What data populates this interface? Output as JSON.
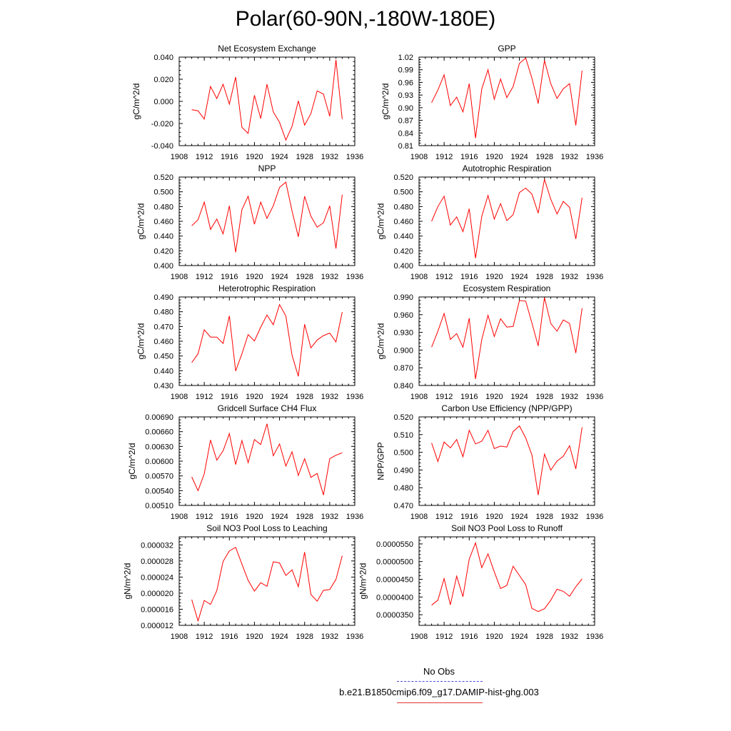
{
  "title": "Polar(60-90N,-180W-180E)",
  "legend": [
    {
      "label": "No Obs",
      "color": "#4a4ad8",
      "dashed": true
    },
    {
      "label": "b.e21.B1850cmip6.f09_g17.DAMIP-hist-ghg.003",
      "color": "#e0352e",
      "dashed": false
    }
  ],
  "chart_data": [
    {
      "type": "line",
      "title": "Net Ecosystem Exchange",
      "ylabel": "gC/m^2/d",
      "xlim": [
        1908,
        1936
      ],
      "x_ticks": [
        "1908",
        "1912",
        "1916",
        "1920",
        "1924",
        "1928",
        "1932",
        "1936"
      ],
      "ylim": [
        -0.04,
        0.04
      ],
      "y_ticks": [
        "-0.040",
        "-0.020",
        "0.000",
        "0.020",
        "0.040"
      ],
      "series": [
        {
          "color": "#ff0000",
          "x": [
            1910,
            1911,
            1912,
            1913,
            1914,
            1915,
            1916,
            1917,
            1918,
            1919,
            1920,
            1921,
            1922,
            1923,
            1924,
            1925,
            1926,
            1927,
            1928,
            1929,
            1930,
            1931,
            1932,
            1933,
            1934
          ],
          "values": [
            -0.0075,
            -0.0085,
            -0.016,
            0.0135,
            0.0025,
            0.0155,
            -0.0025,
            0.022,
            -0.0235,
            -0.029,
            0.0055,
            -0.0155,
            0.0155,
            -0.0095,
            -0.019,
            -0.035,
            -0.0225,
            0.0005,
            -0.0215,
            -0.011,
            0.0095,
            0.0065,
            -0.0135,
            0.0375,
            -0.016
          ]
        }
      ]
    },
    {
      "type": "line",
      "title": "GPP",
      "ylabel": "gC/m^2/d",
      "xlim": [
        1908,
        1936
      ],
      "x_ticks": [
        "1908",
        "1912",
        "1916",
        "1920",
        "1924",
        "1928",
        "1932",
        "1936"
      ],
      "ylim": [
        0.81,
        1.02
      ],
      "y_ticks": [
        "0.81",
        "0.84",
        "0.87",
        "0.90",
        "0.93",
        "0.96",
        "0.99",
        "1.02"
      ],
      "series": [
        {
          "color": "#ff0000",
          "x": [
            1910,
            1911,
            1912,
            1913,
            1914,
            1915,
            1916,
            1917,
            1918,
            1919,
            1920,
            1921,
            1922,
            1923,
            1924,
            1925,
            1926,
            1927,
            1928,
            1929,
            1930,
            1931,
            1932,
            1933,
            1934
          ],
          "values": [
            0.912,
            0.942,
            0.978,
            0.905,
            0.925,
            0.89,
            0.957,
            0.828,
            0.945,
            0.99,
            0.92,
            0.968,
            0.924,
            0.95,
            1.005,
            1.018,
            0.97,
            0.91,
            1.012,
            0.957,
            0.922,
            0.945,
            0.957,
            0.858,
            0.988
          ]
        }
      ]
    },
    {
      "type": "line",
      "title": "NPP",
      "ylabel": "gC/m^2/d",
      "xlim": [
        1908,
        1936
      ],
      "x_ticks": [
        "1908",
        "1912",
        "1916",
        "1920",
        "1924",
        "1928",
        "1932",
        "1936"
      ],
      "ylim": [
        0.4,
        0.52
      ],
      "y_ticks": [
        "0.400",
        "0.420",
        "0.440",
        "0.460",
        "0.480",
        "0.500",
        "0.520"
      ],
      "series": [
        {
          "color": "#ff0000",
          "x": [
            1910,
            1911,
            1912,
            1913,
            1914,
            1915,
            1916,
            1917,
            1918,
            1919,
            1920,
            1921,
            1922,
            1923,
            1924,
            1925,
            1926,
            1927,
            1928,
            1929,
            1930,
            1931,
            1932,
            1933,
            1934
          ],
          "values": [
            0.454,
            0.462,
            0.486,
            0.449,
            0.463,
            0.443,
            0.481,
            0.418,
            0.476,
            0.494,
            0.456,
            0.486,
            0.464,
            0.481,
            0.506,
            0.513,
            0.474,
            0.439,
            0.494,
            0.467,
            0.452,
            0.458,
            0.481,
            0.423,
            0.496
          ]
        }
      ]
    },
    {
      "type": "line",
      "title": "Autotrophic Respiration",
      "ylabel": "gC/m^2/d",
      "xlim": [
        1908,
        1936
      ],
      "x_ticks": [
        "1908",
        "1912",
        "1916",
        "1920",
        "1924",
        "1928",
        "1932",
        "1936"
      ],
      "ylim": [
        0.4,
        0.52
      ],
      "y_ticks": [
        "0.400",
        "0.420",
        "0.440",
        "0.460",
        "0.480",
        "0.500",
        "0.520"
      ],
      "series": [
        {
          "color": "#ff0000",
          "x": [
            1910,
            1911,
            1912,
            1913,
            1914,
            1915,
            1916,
            1917,
            1918,
            1919,
            1920,
            1921,
            1922,
            1923,
            1924,
            1925,
            1926,
            1927,
            1928,
            1929,
            1930,
            1931,
            1932,
            1933,
            1934
          ],
          "values": [
            0.46,
            0.48,
            0.494,
            0.455,
            0.466,
            0.446,
            0.477,
            0.41,
            0.467,
            0.495,
            0.463,
            0.484,
            0.461,
            0.469,
            0.499,
            0.505,
            0.497,
            0.471,
            0.517,
            0.49,
            0.47,
            0.487,
            0.479,
            0.436,
            0.492
          ]
        }
      ]
    },
    {
      "type": "line",
      "title": "Heterotrophic Respiration",
      "ylabel": "gC/m^2/d",
      "xlim": [
        1908,
        1936
      ],
      "x_ticks": [
        "1908",
        "1912",
        "1916",
        "1920",
        "1924",
        "1928",
        "1932",
        "1936"
      ],
      "ylim": [
        0.43,
        0.49
      ],
      "y_ticks": [
        "0.430",
        "0.440",
        "0.450",
        "0.460",
        "0.470",
        "0.480",
        "0.490"
      ],
      "series": [
        {
          "color": "#ff0000",
          "x": [
            1910,
            1911,
            1912,
            1913,
            1914,
            1915,
            1916,
            1917,
            1918,
            1919,
            1920,
            1921,
            1922,
            1923,
            1924,
            1925,
            1926,
            1927,
            1928,
            1929,
            1930,
            1931,
            1932,
            1933,
            1934
          ],
          "values": [
            0.4455,
            0.4515,
            0.4678,
            0.4628,
            0.4628,
            0.4585,
            0.4772,
            0.4398,
            0.4515,
            0.4645,
            0.4602,
            0.4695,
            0.4778,
            0.4712,
            0.4848,
            0.4772,
            0.4505,
            0.4362,
            0.4715,
            0.4555,
            0.4608,
            0.4638,
            0.4655,
            0.4595,
            0.4798
          ]
        }
      ]
    },
    {
      "type": "line",
      "title": "Ecosystem Respiration",
      "ylabel": "gC/m^2/d",
      "xlim": [
        1908,
        1936
      ],
      "x_ticks": [
        "1908",
        "1912",
        "1916",
        "1920",
        "1924",
        "1928",
        "1932",
        "1936"
      ],
      "ylim": [
        0.84,
        0.99
      ],
      "y_ticks": [
        "0.840",
        "0.870",
        "0.900",
        "0.930",
        "0.960",
        "0.990"
      ],
      "series": [
        {
          "color": "#ff0000",
          "x": [
            1910,
            1911,
            1912,
            1913,
            1914,
            1915,
            1916,
            1917,
            1918,
            1919,
            1920,
            1921,
            1922,
            1923,
            1924,
            1925,
            1926,
            1927,
            1928,
            1929,
            1930,
            1931,
            1932,
            1933,
            1934
          ],
          "values": [
            0.905,
            0.932,
            0.962,
            0.918,
            0.928,
            0.905,
            0.954,
            0.851,
            0.918,
            0.959,
            0.923,
            0.953,
            0.939,
            0.94,
            0.984,
            0.983,
            0.946,
            0.907,
            0.989,
            0.945,
            0.932,
            0.951,
            0.945,
            0.895,
            0.971
          ]
        }
      ]
    },
    {
      "type": "line",
      "title": "Gridcell Surface CH4 Flux",
      "ylabel": "gC/m^2/d",
      "xlim": [
        1908,
        1936
      ],
      "x_ticks": [
        "1908",
        "1912",
        "1916",
        "1920",
        "1924",
        "1928",
        "1932",
        "1936"
      ],
      "ylim": [
        0.0051,
        0.0069
      ],
      "y_ticks": [
        "0.00510",
        "0.00540",
        "0.00570",
        "0.00600",
        "0.00630",
        "0.00660",
        "0.00690"
      ],
      "series": [
        {
          "color": "#ff0000",
          "x": [
            1910,
            1911,
            1912,
            1913,
            1914,
            1915,
            1916,
            1917,
            1918,
            1919,
            1920,
            1921,
            1922,
            1923,
            1924,
            1925,
            1926,
            1927,
            1928,
            1929,
            1930,
            1931,
            1932,
            1933,
            1934
          ],
          "values": [
            0.00568,
            0.0054,
            0.00574,
            0.00643,
            0.00602,
            0.00621,
            0.00656,
            0.00593,
            0.00642,
            0.00597,
            0.00644,
            0.00634,
            0.00676,
            0.00611,
            0.00635,
            0.0059,
            0.00619,
            0.00571,
            0.00605,
            0.00567,
            0.00575,
            0.00531,
            0.00605,
            0.00612,
            0.00617
          ]
        }
      ]
    },
    {
      "type": "line",
      "title": "Carbon Use Efficiency (NPP/GPP)",
      "ylabel": "NPP/GPP",
      "xlim": [
        1908,
        1936
      ],
      "x_ticks": [
        "1908",
        "1912",
        "1916",
        "1920",
        "1924",
        "1928",
        "1932",
        "1936"
      ],
      "ylim": [
        0.47,
        0.52
      ],
      "y_ticks": [
        "0.470",
        "0.480",
        "0.490",
        "0.500",
        "0.510",
        "0.520"
      ],
      "series": [
        {
          "color": "#ff0000",
          "x": [
            1910,
            1911,
            1912,
            1913,
            1914,
            1915,
            1916,
            1917,
            1918,
            1919,
            1920,
            1921,
            1922,
            1923,
            1924,
            1925,
            1926,
            1927,
            1928,
            1929,
            1930,
            1931,
            1932,
            1933,
            1934
          ],
          "values": [
            0.5053,
            0.4948,
            0.5058,
            0.5025,
            0.5072,
            0.4975,
            0.5124,
            0.5047,
            0.5063,
            0.5124,
            0.5021,
            0.5035,
            0.503,
            0.5117,
            0.5149,
            0.5081,
            0.4985,
            0.4759,
            0.499,
            0.4899,
            0.4951,
            0.4978,
            0.5037,
            0.4906,
            0.5141
          ]
        }
      ]
    },
    {
      "type": "line",
      "title": "Soil NO3 Pool Loss to Leaching",
      "ylabel": "gN/m^2/d",
      "xlim": [
        1908,
        1936
      ],
      "x_ticks": [
        "1908",
        "1912",
        "1916",
        "1920",
        "1924",
        "1928",
        "1932",
        "1936"
      ],
      "ylim": [
        1.2e-05,
        3.4e-05
      ],
      "y_ticks": [
        "0.000012",
        "0.000016",
        "0.000020",
        "0.000024",
        "0.000028",
        "0.000032"
      ],
      "series": [
        {
          "color": "#ff0000",
          "x": [
            1910,
            1911,
            1912,
            1913,
            1914,
            1915,
            1916,
            1917,
            1918,
            1919,
            1920,
            1921,
            1922,
            1923,
            1924,
            1925,
            1926,
            1927,
            1928,
            1929,
            1930,
            1931,
            1932,
            1933,
            1934
          ],
          "values": [
            1.84e-05,
            1.31e-05,
            1.82e-05,
            1.72e-05,
            2.06e-05,
            2.79e-05,
            3.05e-05,
            3.14e-05,
            2.72e-05,
            2.32e-05,
            2.05e-05,
            2.26e-05,
            2.17e-05,
            2.78e-05,
            2.75e-05,
            2.44e-05,
            2.58e-05,
            2.16e-05,
            3.02e-05,
            1.97e-05,
            1.8e-05,
            2.07e-05,
            2.09e-05,
            2.34e-05,
            2.93e-05
          ]
        }
      ]
    },
    {
      "type": "line",
      "title": "Soil NO3 Pool Loss to Runoff",
      "ylabel": "gN/m^2/d",
      "xlim": [
        1908,
        1936
      ],
      "x_ticks": [
        "1908",
        "1912",
        "1916",
        "1920",
        "1924",
        "1928",
        "1932",
        "1936"
      ],
      "ylim": [
        3.2e-05,
        5.7e-05
      ],
      "y_ticks": [
        "0.0000350",
        "0.0000400",
        "0.0000450",
        "0.0000500",
        "0.0000550"
      ],
      "series": [
        {
          "color": "#ff0000",
          "x": [
            1910,
            1911,
            1912,
            1913,
            1914,
            1915,
            1916,
            1917,
            1918,
            1919,
            1920,
            1921,
            1922,
            1923,
            1924,
            1925,
            1926,
            1927,
            1928,
            1929,
            1930,
            1931,
            1932,
            1933,
            1934
          ],
          "values": [
            3.77e-05,
            3.91e-05,
            4.52e-05,
            3.78e-05,
            4.59e-05,
            4.01e-05,
            5.07e-05,
            5.53e-05,
            4.83e-05,
            5.22e-05,
            4.71e-05,
            4.24e-05,
            4.33e-05,
            4.87e-05,
            4.61e-05,
            4.35e-05,
            3.68e-05,
            3.59e-05,
            3.67e-05,
            3.91e-05,
            4.22e-05,
            4.16e-05,
            4.02e-05,
            4.29e-05,
            4.51e-05
          ]
        }
      ]
    }
  ]
}
